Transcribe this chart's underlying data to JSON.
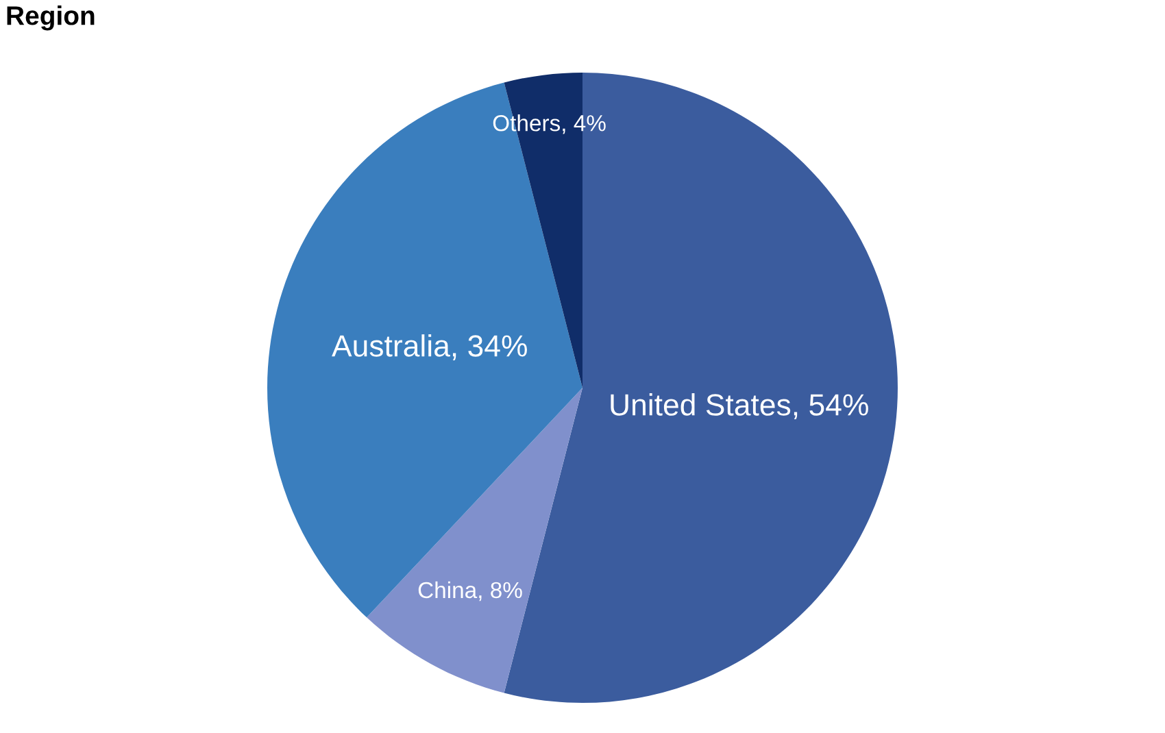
{
  "chart_data": {
    "type": "pie",
    "title": "Region",
    "categories": [
      "United States",
      "China",
      "Australia",
      "Others"
    ],
    "values": [
      54,
      8,
      34,
      4
    ],
    "value_labels": [
      "54%",
      "8%",
      "34%",
      "4%"
    ],
    "colors": [
      "#3b5c9e",
      "#8090cc",
      "#3a7ebe",
      "#102d69"
    ]
  }
}
